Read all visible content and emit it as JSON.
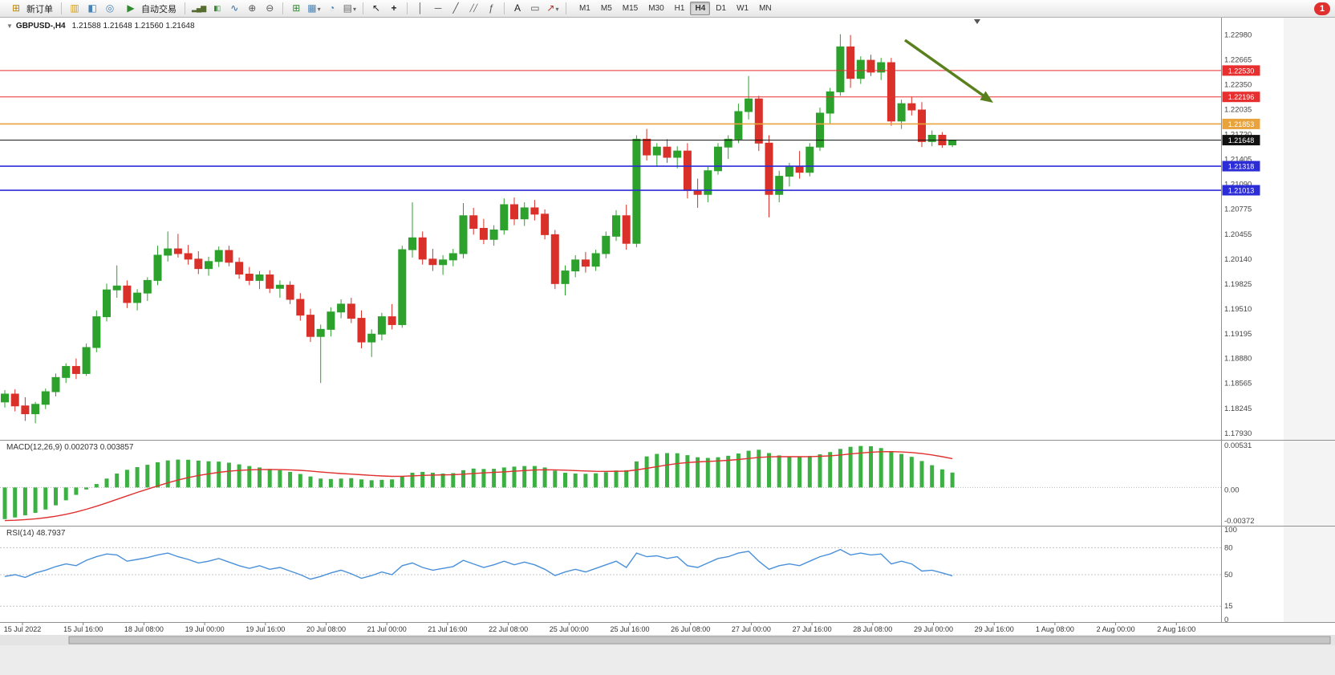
{
  "toolbar": {
    "new_order": "新订单",
    "autotrading": "自动交易",
    "timeframes": [
      "M1",
      "M5",
      "M15",
      "M30",
      "H1",
      "H4",
      "D1",
      "W1",
      "MN"
    ],
    "active_timeframe": "H4",
    "notification_count": "1",
    "icon_names": [
      "new-order",
      "market-watch",
      "data-window",
      "navigator",
      "autotrading",
      "bar-chart",
      "candlestick-chart",
      "line-chart",
      "zoom-in",
      "zoom-out",
      "tile-windows",
      "new-chart",
      "period",
      "chart-properties",
      "cursor",
      "crosshair",
      "vertical-line",
      "horizontal-line",
      "trendline",
      "equidistant-channel",
      "fibonacci",
      "text",
      "label",
      "arrow-styles"
    ]
  },
  "chart_data": [
    {
      "type": "candlestick",
      "symbol": "GBPUSD",
      "timeframe": "H4",
      "title": "GBPUSD-,H4",
      "ohlc_display": "1.21588 1.21648 1.21560 1.21648",
      "grid": false,
      "colors": {
        "up": "#2ca12c",
        "down": "#d9302a",
        "background": "#ffffff"
      },
      "price_axis": {
        "min": 1.1785,
        "max": 1.232,
        "ticks": [
          "1.22980",
          "1.22665",
          "1.22350",
          "1.22035",
          "1.21720",
          "1.21405",
          "1.21090",
          "1.20775",
          "1.20455",
          "1.20140",
          "1.19825",
          "1.19510",
          "1.19195",
          "1.18880",
          "1.18565",
          "1.18245",
          "1.17930"
        ]
      },
      "x_labels": [
        "15 Jul 2022",
        "15 Jul 16:00",
        "18 Jul 08:00",
        "19 Jul 00:00",
        "19 Jul 16:00",
        "20 Jul 08:00",
        "21 Jul 00:00",
        "21 Jul 16:00",
        "22 Jul 08:00",
        "25 Jul 00:00",
        "25 Jul 16:00",
        "26 Jul 08:00",
        "27 Jul 00:00",
        "27 Jul 16:00",
        "28 Jul 08:00",
        "29 Jul 00:00",
        "29 Jul 16:00",
        "1 Aug 08:00",
        "2 Aug 00:00",
        "2 Aug 16:00"
      ],
      "levels": [
        {
          "price": 1.2253,
          "label": "1.22530",
          "color": "#e82f2f",
          "width": 1
        },
        {
          "price": 1.22196,
          "label": "1.22196",
          "color": "#e82f2f",
          "width": 1
        },
        {
          "price": 1.21853,
          "label": "1.21853",
          "color": "#e8a33d",
          "width": 1.6
        },
        {
          "price": 1.21648,
          "label": "1.21648",
          "color": "#111111",
          "width": 1,
          "current": true
        },
        {
          "price": 1.21318,
          "label": "1.21318",
          "color": "#2d2dd8",
          "width": 1.6
        },
        {
          "price": 1.21013,
          "label": "1.21013",
          "color": "#2d2dd8",
          "width": 1.6
        }
      ],
      "annotations": [
        {
          "type": "arrow",
          "direction": "down-right",
          "color": "#5a801e",
          "meaning": "projected-decline"
        }
      ],
      "candles": [
        [
          1.1833,
          1.1848,
          1.1826,
          1.1843
        ],
        [
          1.1843,
          1.1849,
          1.1821,
          1.1828
        ],
        [
          1.1828,
          1.1839,
          1.1809,
          1.1818
        ],
        [
          1.1818,
          1.1833,
          1.1806,
          1.183
        ],
        [
          1.183,
          1.185,
          1.1824,
          1.1846
        ],
        [
          1.1846,
          1.1869,
          1.184,
          1.1864
        ],
        [
          1.1864,
          1.1882,
          1.1857,
          1.1878
        ],
        [
          1.1878,
          1.1888,
          1.1862,
          1.1869
        ],
        [
          1.1869,
          1.1907,
          1.1866,
          1.1902
        ],
        [
          1.1902,
          1.1949,
          1.1896,
          1.1941
        ],
        [
          1.1941,
          1.1983,
          1.1935,
          1.1975
        ],
        [
          1.1975,
          1.2006,
          1.1965,
          1.198
        ],
        [
          1.198,
          1.1987,
          1.1952,
          1.1959
        ],
        [
          1.1959,
          1.1976,
          1.1949,
          1.1971
        ],
        [
          1.1971,
          1.1991,
          1.1961,
          1.1987
        ],
        [
          1.1987,
          1.2031,
          1.1981,
          1.2019
        ],
        [
          1.2019,
          1.2049,
          1.2011,
          1.2027
        ],
        [
          1.2027,
          1.2046,
          1.2016,
          1.2021
        ],
        [
          1.2021,
          1.2032,
          1.2007,
          1.2014
        ],
        [
          1.2014,
          1.2024,
          1.1995,
          1.2002
        ],
        [
          1.2002,
          1.2017,
          1.1993,
          1.2011
        ],
        [
          1.2011,
          1.203,
          1.2004,
          1.2025
        ],
        [
          1.2025,
          1.2031,
          1.2005,
          1.201
        ],
        [
          1.201,
          1.2016,
          1.1989,
          1.1995
        ],
        [
          1.1995,
          1.2004,
          1.1981,
          1.1987
        ],
        [
          1.1987,
          1.1999,
          1.1976,
          1.1994
        ],
        [
          1.1994,
          1.2,
          1.1971,
          1.1977
        ],
        [
          1.1977,
          1.1987,
          1.1965,
          1.1981
        ],
        [
          1.1981,
          1.1986,
          1.1957,
          1.1963
        ],
        [
          1.1963,
          1.1971,
          1.1936,
          1.1943
        ],
        [
          1.1943,
          1.1951,
          1.1909,
          1.1916
        ],
        [
          1.1916,
          1.1931,
          1.1857,
          1.1925
        ],
        [
          1.1925,
          1.1953,
          1.1916,
          1.1947
        ],
        [
          1.1947,
          1.1963,
          1.1939,
          1.1957
        ],
        [
          1.1957,
          1.1965,
          1.1933,
          1.1939
        ],
        [
          1.1939,
          1.1949,
          1.1901,
          1.1909
        ],
        [
          1.1909,
          1.1925,
          1.189,
          1.1919
        ],
        [
          1.1919,
          1.1946,
          1.1911,
          1.1941
        ],
        [
          1.1941,
          1.1957,
          1.1925,
          1.1931
        ],
        [
          1.1931,
          1.2031,
          1.1927,
          1.2026
        ],
        [
          1.2026,
          1.2086,
          1.2016,
          1.2041
        ],
        [
          1.2041,
          1.2049,
          1.2007,
          1.2014
        ],
        [
          1.2014,
          1.2027,
          1.1999,
          1.2007
        ],
        [
          1.2007,
          1.2019,
          1.1994,
          1.2013
        ],
        [
          1.2013,
          1.2027,
          1.2005,
          1.2021
        ],
        [
          1.2021,
          1.2085,
          1.2015,
          1.2069
        ],
        [
          1.2069,
          1.2079,
          1.2045,
          1.2053
        ],
        [
          1.2053,
          1.2065,
          1.2033,
          1.2039
        ],
        [
          1.2039,
          1.2057,
          1.2031,
          1.2051
        ],
        [
          1.2051,
          1.2091,
          1.2045,
          1.2083
        ],
        [
          1.2083,
          1.2092,
          1.2057,
          1.2065
        ],
        [
          1.2065,
          1.2086,
          1.2056,
          1.2079
        ],
        [
          1.2079,
          1.2089,
          1.2063,
          1.2071
        ],
        [
          1.2071,
          1.2077,
          1.2039,
          1.2045
        ],
        [
          1.2045,
          1.2051,
          1.1976,
          1.1983
        ],
        [
          1.1983,
          1.2006,
          1.1968,
          1.1999
        ],
        [
          1.1999,
          1.2019,
          1.1991,
          1.2013
        ],
        [
          1.2013,
          1.2023,
          1.1997,
          1.2005
        ],
        [
          1.2005,
          1.2026,
          1.1999,
          1.2021
        ],
        [
          1.2021,
          1.2049,
          1.2015,
          1.2043
        ],
        [
          1.2043,
          1.2076,
          1.2037,
          1.2069
        ],
        [
          1.2069,
          1.2083,
          1.2026,
          1.2034
        ],
        [
          1.2034,
          1.2171,
          1.2029,
          1.2166
        ],
        [
          1.2166,
          1.2179,
          1.2139,
          1.2146
        ],
        [
          1.2146,
          1.2161,
          1.2131,
          1.2156
        ],
        [
          1.2156,
          1.2166,
          1.2136,
          1.2143
        ],
        [
          1.2143,
          1.2157,
          1.2129,
          1.2151
        ],
        [
          1.2151,
          1.2161,
          1.2091,
          1.2101
        ],
        [
          1.2101,
          1.2116,
          1.2079,
          1.2096
        ],
        [
          1.2096,
          1.2131,
          1.2086,
          1.2126
        ],
        [
          1.2126,
          1.2161,
          1.2121,
          1.2156
        ],
        [
          1.2156,
          1.2171,
          1.2141,
          1.2166
        ],
        [
          1.2166,
          1.2211,
          1.2161,
          1.2201
        ],
        [
          1.2201,
          1.2246,
          1.2191,
          1.2217
        ],
        [
          1.2217,
          1.2221,
          1.2151,
          1.2161
        ],
        [
          1.2161,
          1.2171,
          1.2067,
          1.2096
        ],
        [
          1.2096,
          1.2126,
          1.2086,
          1.2119
        ],
        [
          1.2119,
          1.2136,
          1.2106,
          1.2131
        ],
        [
          1.2131,
          1.2151,
          1.2116,
          1.2124
        ],
        [
          1.2124,
          1.2161,
          1.2119,
          1.2156
        ],
        [
          1.2156,
          1.2206,
          1.2151,
          1.2199
        ],
        [
          1.2199,
          1.2231,
          1.2186,
          1.2226
        ],
        [
          1.2226,
          1.2299,
          1.2221,
          1.2283
        ],
        [
          1.2283,
          1.2298,
          1.2231,
          1.2243
        ],
        [
          1.2243,
          1.2271,
          1.2236,
          1.2266
        ],
        [
          1.2266,
          1.2273,
          1.2246,
          1.2251
        ],
        [
          1.2251,
          1.2269,
          1.2241,
          1.2263
        ],
        [
          1.2263,
          1.2269,
          1.2183,
          1.2189
        ],
        [
          1.2189,
          1.2216,
          1.2179,
          1.2211
        ],
        [
          1.2211,
          1.222,
          1.2196,
          1.2203
        ],
        [
          1.2203,
          1.2213,
          1.2156,
          1.2163
        ],
        [
          1.2163,
          1.2177,
          1.2157,
          1.2171
        ],
        [
          1.2171,
          1.2175,
          1.2155,
          1.21588
        ],
        [
          1.21588,
          1.21648,
          1.2156,
          1.21648
        ]
      ]
    },
    {
      "type": "bar",
      "name": "MACD(12,26,9)",
      "current_values": "0.002073 0.003857",
      "bar_color": "#3cb043",
      "signal_color": "#e03030",
      "y_ticks": [
        "0.00531",
        "0.00",
        "-0.00372"
      ],
      "range": {
        "min": -0.004,
        "max": 0.0056
      },
      "values": [
        -0.0035,
        -0.0033,
        -0.00305,
        -0.00275,
        -0.00235,
        -0.00185,
        -0.00125,
        -0.0006,
        5e-05,
        0.0007,
        0.00135,
        0.00195,
        0.0024,
        0.00272,
        0.003,
        0.0033,
        0.00352,
        0.00362,
        0.0036,
        0.0035,
        0.00342,
        0.00338,
        0.00325,
        0.00305,
        0.00285,
        0.00268,
        0.0025,
        0.00235,
        0.00215,
        0.0019,
        0.0016,
        0.00135,
        0.0013,
        0.00135,
        0.0014,
        0.00125,
        0.00115,
        0.0012,
        0.00125,
        0.00165,
        0.00205,
        0.00215,
        0.00205,
        0.00195,
        0.002,
        0.00235,
        0.00255,
        0.0025,
        0.00252,
        0.00268,
        0.00278,
        0.00285,
        0.00285,
        0.00268,
        0.0023,
        0.00205,
        0.00195,
        0.00192,
        0.00198,
        0.00212,
        0.00232,
        0.00235,
        0.0034,
        0.004,
        0.0043,
        0.0044,
        0.00438,
        0.00415,
        0.0039,
        0.00382,
        0.0039,
        0.00408,
        0.00435,
        0.00468,
        0.0048,
        0.0044,
        0.00412,
        0.004,
        0.00398,
        0.00405,
        0.00425,
        0.00452,
        0.0049,
        0.00515,
        0.00525,
        0.00522,
        0.005,
        0.00462,
        0.0043,
        0.00395,
        0.00345,
        0.00295,
        0.00245,
        0.00207
      ]
    },
    {
      "type": "line",
      "name": "RSI(14)",
      "current_value": "48.7937",
      "line_color": "#4a90d9",
      "y_ticks": [
        "100",
        "80",
        "50",
        "15",
        "0"
      ],
      "level_lines": [
        80,
        50,
        15
      ],
      "range": {
        "min": 0,
        "max": 100
      },
      "values": [
        48,
        50,
        47,
        52,
        55,
        59,
        62,
        60,
        66,
        70,
        73,
        72,
        65,
        67,
        69,
        72,
        74,
        70,
        67,
        63,
        65,
        68,
        64,
        60,
        57,
        60,
        56,
        58,
        54,
        50,
        45,
        48,
        52,
        55,
        51,
        46,
        49,
        53,
        50,
        60,
        63,
        58,
        55,
        57,
        59,
        66,
        62,
        58,
        61,
        65,
        61,
        64,
        61,
        56,
        49,
        53,
        56,
        53,
        57,
        61,
        65,
        58,
        74,
        70,
        71,
        68,
        70,
        60,
        58,
        63,
        68,
        70,
        74,
        76,
        65,
        56,
        60,
        62,
        60,
        65,
        70,
        73,
        78,
        72,
        74,
        72,
        73,
        62,
        65,
        62,
        54,
        55,
        52,
        48.79
      ]
    }
  ]
}
